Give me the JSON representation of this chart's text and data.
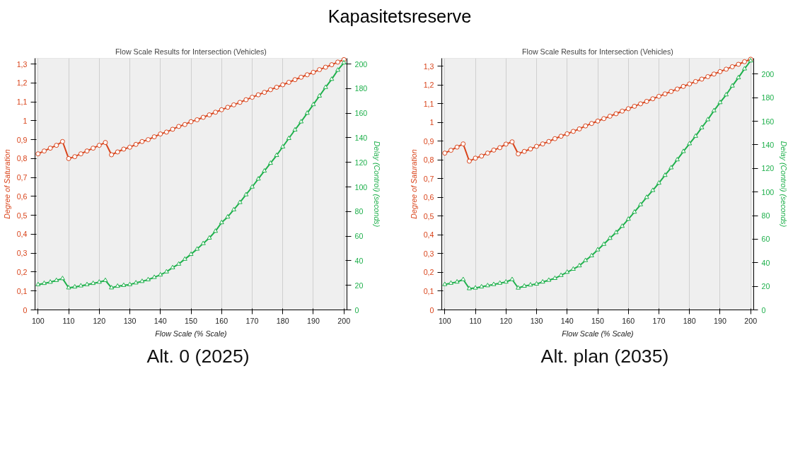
{
  "chart_data": [
    {
      "type": "other",
      "title": "Kapasitetsreserve"
    },
    {
      "type": "line",
      "title": "Flow Scale Results for Intersection (Vehicles)",
      "xlabel": "Flow Scale (% Scale)",
      "ylabel": "Degree of Saturation",
      "y2label": "Delay (Control) (seconds)",
      "annotations": [
        "Alt. 0 (2025)"
      ],
      "x": [
        100,
        102,
        104,
        106,
        108,
        110,
        112,
        114,
        116,
        118,
        120,
        122,
        124,
        126,
        128,
        130,
        132,
        134,
        136,
        138,
        140,
        142,
        144,
        146,
        148,
        150,
        152,
        154,
        156,
        158,
        160,
        162,
        164,
        166,
        168,
        170,
        172,
        174,
        176,
        178,
        180,
        182,
        184,
        186,
        188,
        190,
        192,
        194,
        196,
        198,
        200
      ],
      "series": [
        {
          "color": "#d9441b",
          "marker": "circle",
          "values": [
            0.825,
            0.84,
            0.855,
            0.87,
            0.89,
            0.8,
            0.81,
            0.825,
            0.84,
            0.855,
            0.87,
            0.885,
            0.82,
            0.835,
            0.85,
            0.86,
            0.875,
            0.89,
            0.9,
            0.915,
            0.93,
            0.94,
            0.955,
            0.97,
            0.98,
            0.995,
            1.005,
            1.018,
            1.031,
            1.045,
            1.058,
            1.071,
            1.084,
            1.097,
            1.111,
            1.124,
            1.137,
            1.15,
            1.164,
            1.177,
            1.19,
            1.203,
            1.217,
            1.23,
            1.243,
            1.256,
            1.27,
            1.283,
            1.296,
            1.31,
            1.323
          ]
        },
        {
          "color": "#1fb04c",
          "marker": "triangle",
          "axis": "y2",
          "values": [
            20.6,
            21.6,
            22.6,
            24,
            25.5,
            18,
            18.7,
            19.6,
            20.6,
            21.6,
            22.6,
            24,
            18,
            19.3,
            20,
            20.6,
            22,
            23.2,
            24.6,
            26.5,
            28.5,
            31,
            34.4,
            37.3,
            41.3,
            45.2,
            49.5,
            54,
            58.5,
            64,
            71,
            75.6,
            81.5,
            87.4,
            93.7,
            100,
            106.5,
            113,
            119.3,
            125.7,
            132.6,
            139.5,
            146.4,
            153,
            160,
            167,
            174,
            181,
            187.6,
            195,
            201
          ]
        }
      ],
      "xlim": [
        99,
        201
      ],
      "xticks": [
        100,
        110,
        120,
        130,
        140,
        150,
        160,
        170,
        180,
        190,
        200
      ],
      "ylim": [
        0,
        1.33
      ],
      "yticks": [
        0,
        {
          "value": 0.1,
          "label": "0,1"
        },
        {
          "value": 0.2,
          "label": "0,2"
        },
        {
          "value": 0.3,
          "label": "0,3"
        },
        {
          "value": 0.4,
          "label": "0,4"
        },
        {
          "value": 0.5,
          "label": "0,5"
        },
        {
          "value": 0.6,
          "label": "0,6"
        },
        {
          "value": 0.7,
          "label": "0,7"
        },
        {
          "value": 0.8,
          "label": "0,8"
        },
        {
          "value": 0.9,
          "label": "0,9"
        },
        1,
        {
          "value": 1.1,
          "label": "1,1"
        },
        {
          "value": 1.2,
          "label": "1,2"
        },
        {
          "value": 1.3,
          "label": "1,3"
        }
      ],
      "y2lim": [
        0,
        204.6
      ],
      "y2ticks": [
        0,
        20,
        40,
        60,
        80,
        100,
        120,
        140,
        160,
        180,
        200
      ],
      "grid": "x",
      "line_style": "solid"
    },
    {
      "type": "line",
      "title": "Flow Scale Results for Intersection (Vehicles)",
      "xlabel": "Flow Scale (% Scale)",
      "ylabel": "Degree of Saturation",
      "y2label": "Delay (Control) (seconds)",
      "annotations": [
        "Alt. plan (2035)"
      ],
      "x": [
        100,
        102,
        104,
        106,
        108,
        110,
        112,
        114,
        116,
        118,
        120,
        122,
        124,
        126,
        128,
        130,
        132,
        134,
        136,
        138,
        140,
        142,
        144,
        146,
        148,
        150,
        152,
        154,
        156,
        158,
        160,
        162,
        164,
        166,
        168,
        170,
        172,
        174,
        176,
        178,
        180,
        182,
        184,
        186,
        188,
        190,
        192,
        194,
        196,
        198,
        200
      ],
      "series": [
        {
          "color": "#d9441b",
          "marker": "circle",
          "values": [
            0.837,
            0.852,
            0.869,
            0.886,
            0.794,
            0.81,
            0.821,
            0.837,
            0.853,
            0.866,
            0.885,
            0.897,
            0.833,
            0.846,
            0.859,
            0.873,
            0.886,
            0.899,
            0.914,
            0.927,
            0.94,
            0.953,
            0.966,
            0.982,
            0.995,
            1.008,
            1.021,
            1.034,
            1.047,
            1.061,
            1.074,
            1.087,
            1.1,
            1.113,
            1.127,
            1.14,
            1.153,
            1.166,
            1.179,
            1.193,
            1.206,
            1.219,
            1.232,
            1.245,
            1.259,
            1.272,
            1.285,
            1.298,
            1.311,
            1.325,
            1.338
          ]
        },
        {
          "color": "#1fb04c",
          "marker": "triangle",
          "axis": "y2",
          "values": [
            21.6,
            22.7,
            23.7,
            25.8,
            18.1,
            18.6,
            19.6,
            20.6,
            21.6,
            22.7,
            23.7,
            25.8,
            18.6,
            20.2,
            21.2,
            22,
            23.7,
            25.2,
            26.8,
            29.3,
            32,
            34.6,
            37.5,
            42,
            46,
            51,
            55.7,
            60.8,
            65.6,
            71,
            77,
            83,
            89.3,
            95.5,
            101.4,
            107.6,
            114.2,
            120.6,
            127.4,
            134.4,
            141,
            147.4,
            154.6,
            161.4,
            169,
            175.9,
            182.5,
            190,
            197,
            204.5,
            211.3
          ]
        }
      ],
      "xlim": [
        99,
        201
      ],
      "xticks": [
        100,
        110,
        120,
        130,
        140,
        150,
        160,
        170,
        180,
        190,
        200
      ],
      "ylim": [
        0,
        1.343
      ],
      "yticks": [
        0,
        {
          "value": 0.1,
          "label": "0,1"
        },
        {
          "value": 0.2,
          "label": "0,2"
        },
        {
          "value": 0.3,
          "label": "0,3"
        },
        {
          "value": 0.4,
          "label": "0,4"
        },
        {
          "value": 0.5,
          "label": "0,5"
        },
        {
          "value": 0.6,
          "label": "0,6"
        },
        {
          "value": 0.7,
          "label": "0,7"
        },
        {
          "value": 0.8,
          "label": "0,8"
        },
        {
          "value": 0.9,
          "label": "0,9"
        },
        1,
        {
          "value": 1.1,
          "label": "1,1"
        },
        {
          "value": 1.2,
          "label": "1,2"
        },
        {
          "value": 1.3,
          "label": "1,3"
        }
      ],
      "y2lim": [
        0,
        213.4
      ],
      "y2ticks": [
        0,
        20,
        40,
        60,
        80,
        100,
        120,
        140,
        160,
        180,
        200
      ],
      "grid": "x",
      "line_style": "solid"
    }
  ]
}
